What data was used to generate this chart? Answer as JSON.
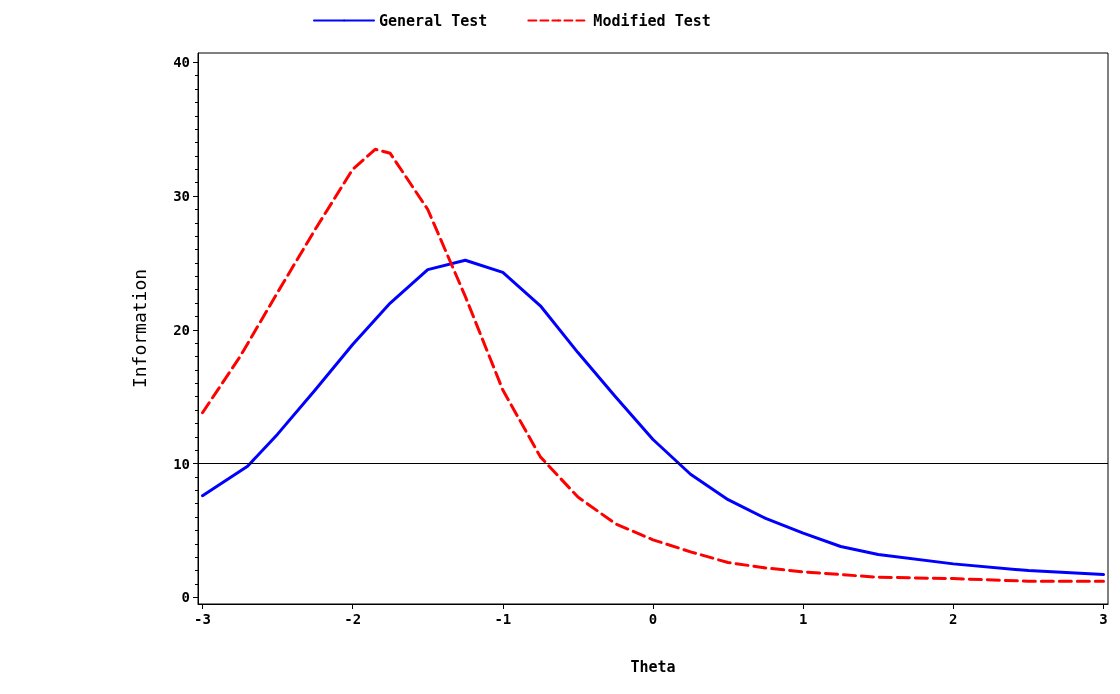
{
  "chart_data": {
    "type": "line",
    "xlabel": "Theta",
    "ylabel": "Information",
    "xlim": [
      -3.03,
      3.03
    ],
    "ylim": [
      -0.5,
      40.7
    ],
    "xticks": [
      -3,
      -2,
      -1,
      0,
      1,
      2,
      3
    ],
    "yticks": [
      0,
      10,
      20,
      30,
      40
    ],
    "legend": "top",
    "grid": false,
    "marker": "none",
    "series": [
      {
        "name": "General Test",
        "color": "#0000ff",
        "line_style": "solid",
        "x": [
          -3,
          -2.7,
          -2.5,
          -2.25,
          -2,
          -1.75,
          -1.5,
          -1.25,
          -1,
          -0.75,
          -0.5,
          -0.25,
          0,
          0.25,
          0.5,
          0.75,
          1,
          1.25,
          1.5,
          2,
          2.5,
          3
        ],
        "values": [
          7.6,
          9.8,
          12.2,
          15.5,
          18.9,
          22,
          24.5,
          25.2,
          24.3,
          21.8,
          18.3,
          15,
          11.8,
          9.2,
          7.3,
          5.9,
          4.8,
          3.8,
          3.2,
          2.5,
          2,
          1.7
        ]
      },
      {
        "name": "Modified Test",
        "color": "#ff0000",
        "line_style": "dashed",
        "x": [
          -3,
          -2.75,
          -2.5,
          -2.25,
          -2,
          -1.85,
          -1.75,
          -1.5,
          -1.25,
          -1,
          -0.75,
          -0.5,
          -0.25,
          0,
          0.25,
          0.5,
          0.75,
          1,
          1.5,
          2,
          2.5,
          3
        ],
        "values": [
          13.8,
          18,
          22.8,
          27.5,
          32,
          33.5,
          33.2,
          29,
          22.5,
          15.5,
          10.5,
          7.5,
          5.5,
          4.3,
          3.4,
          2.6,
          2.2,
          1.9,
          1.5,
          1.4,
          1.2,
          1.2
        ]
      }
    ],
    "ref_lines": [
      {
        "axis": "y",
        "value": 10,
        "color": "#000000",
        "line_style": "solid"
      }
    ]
  }
}
